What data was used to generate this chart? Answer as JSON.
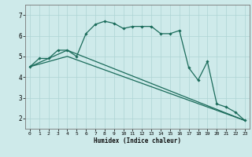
{
  "title": "",
  "xlabel": "Humidex (Indice chaleur)",
  "ylabel": "",
  "bg_color": "#ceeaea",
  "grid_color": "#aed4d4",
  "line_color": "#1a6b5a",
  "xlim": [
    -0.5,
    23.5
  ],
  "ylim": [
    1.5,
    7.5
  ],
  "yticks": [
    2,
    3,
    4,
    5,
    6,
    7
  ],
  "xticks": [
    0,
    1,
    2,
    3,
    4,
    5,
    6,
    7,
    8,
    9,
    10,
    11,
    12,
    13,
    14,
    15,
    16,
    17,
    18,
    19,
    20,
    21,
    22,
    23
  ],
  "curve1_x": [
    0,
    1,
    2,
    3,
    4,
    5,
    6,
    7,
    8,
    9,
    10,
    11,
    12,
    13,
    14,
    15,
    16,
    17,
    18,
    19,
    20,
    21,
    22,
    23
  ],
  "curve1_y": [
    4.5,
    4.9,
    4.9,
    5.3,
    5.3,
    5.0,
    6.1,
    6.55,
    6.7,
    6.6,
    6.35,
    6.45,
    6.45,
    6.45,
    6.1,
    6.1,
    6.25,
    4.45,
    3.85,
    4.75,
    2.7,
    2.55,
    2.3,
    1.9
  ],
  "curve2_x": [
    0,
    4,
    23
  ],
  "curve2_y": [
    4.5,
    5.3,
    1.9
  ],
  "curve3_x": [
    0,
    4,
    23
  ],
  "curve3_y": [
    4.5,
    5.0,
    1.9
  ]
}
